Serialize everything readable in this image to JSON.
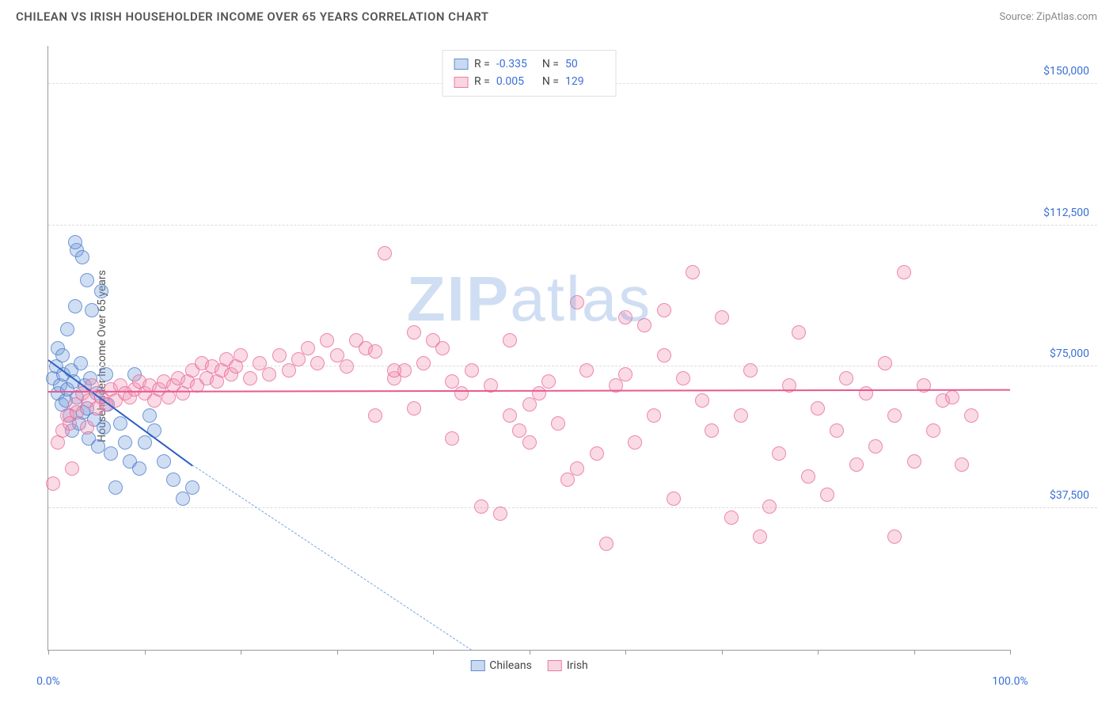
{
  "header": {
    "title": "CHILEAN VS IRISH HOUSEHOLDER INCOME OVER 65 YEARS CORRELATION CHART",
    "source": "Source: ZipAtlas.com"
  },
  "ylabel": "Householder Income Over 65 years",
  "watermark": {
    "a": "ZIP",
    "b": "atlas"
  },
  "chart": {
    "type": "scatter",
    "xlim": [
      0,
      100
    ],
    "ylim": [
      0,
      160000
    ],
    "x_ticks": [
      0,
      10,
      20,
      30,
      40,
      50,
      60,
      70,
      80,
      90,
      100
    ],
    "x_tick_labels": {
      "0": "0.0%",
      "100": "100.0%"
    },
    "y_ticks": [
      37500,
      75000,
      112500,
      150000
    ],
    "y_tick_labels": [
      "$37,500",
      "$75,000",
      "$112,500",
      "$150,000"
    ],
    "background_color": "#ffffff",
    "grid_color": "#dddddd",
    "series": [
      {
        "key": "a",
        "label": "Chileans",
        "color_fill": "rgba(120,160,220,0.35)",
        "color_stroke": "rgba(70,120,200,0.7)",
        "marker_size": 18,
        "R": "-0.335",
        "N": "50",
        "trend": {
          "x1": 0,
          "y1": 77000,
          "x2": 15,
          "y2": 49000,
          "dash_to_x": 44,
          "dash_to_y": 0
        },
        "points": [
          [
            0.5,
            72000
          ],
          [
            0.8,
            75000
          ],
          [
            1.0,
            68000
          ],
          [
            1.0,
            80000
          ],
          [
            1.2,
            70000
          ],
          [
            1.4,
            65000
          ],
          [
            1.5,
            78000
          ],
          [
            1.6,
            73000
          ],
          [
            1.8,
            66000
          ],
          [
            2.0,
            69000
          ],
          [
            2.0,
            85000
          ],
          [
            2.2,
            62000
          ],
          [
            2.4,
            74000
          ],
          [
            2.5,
            58000
          ],
          [
            2.6,
            71000
          ],
          [
            2.8,
            91000
          ],
          [
            3.0,
            106000
          ],
          [
            3.0,
            67000
          ],
          [
            3.2,
            60000
          ],
          [
            3.4,
            76000
          ],
          [
            3.5,
            104000
          ],
          [
            3.6,
            63000
          ],
          [
            3.8,
            70000
          ],
          [
            4.0,
            98000
          ],
          [
            4.0,
            64000
          ],
          [
            4.2,
            56000
          ],
          [
            4.4,
            72000
          ],
          [
            4.5,
            90000
          ],
          [
            4.8,
            61000
          ],
          [
            5.0,
            68000
          ],
          [
            5.2,
            54000
          ],
          [
            5.5,
            95000
          ],
          [
            5.8,
            59000
          ],
          [
            6.0,
            73000
          ],
          [
            6.2,
            65000
          ],
          [
            6.5,
            52000
          ],
          [
            7.0,
            43000
          ],
          [
            7.5,
            60000
          ],
          [
            8.0,
            55000
          ],
          [
            8.5,
            50000
          ],
          [
            9.0,
            73000
          ],
          [
            9.5,
            48000
          ],
          [
            10.0,
            55000
          ],
          [
            10.5,
            62000
          ],
          [
            11.0,
            58000
          ],
          [
            12.0,
            50000
          ],
          [
            13.0,
            45000
          ],
          [
            14.0,
            40000
          ],
          [
            15.0,
            43000
          ],
          [
            2.8,
            108000
          ]
        ]
      },
      {
        "key": "b",
        "label": "Irish",
        "color_fill": "rgba(240,150,180,0.35)",
        "color_stroke": "rgba(230,100,150,0.7)",
        "marker_size": 18,
        "R": "0.005",
        "N": "129",
        "trend": {
          "x1": 0,
          "y1": 68500,
          "x2": 100,
          "y2": 69000
        },
        "points": [
          [
            0.5,
            44000
          ],
          [
            1.0,
            55000
          ],
          [
            1.5,
            58000
          ],
          [
            2.0,
            62000
          ],
          [
            2.2,
            60000
          ],
          [
            2.5,
            48000
          ],
          [
            2.8,
            65000
          ],
          [
            3.0,
            63000
          ],
          [
            3.5,
            68000
          ],
          [
            4.0,
            59000
          ],
          [
            4.2,
            66000
          ],
          [
            4.5,
            70000
          ],
          [
            5.0,
            64000
          ],
          [
            5.5,
            67000
          ],
          [
            6.0,
            65000
          ],
          [
            6.5,
            69000
          ],
          [
            7.0,
            66000
          ],
          [
            7.5,
            70000
          ],
          [
            8.0,
            68000
          ],
          [
            8.5,
            67000
          ],
          [
            9.0,
            69000
          ],
          [
            9.5,
            71000
          ],
          [
            10.0,
            68000
          ],
          [
            10.5,
            70000
          ],
          [
            11.0,
            66000
          ],
          [
            11.5,
            69000
          ],
          [
            12.0,
            71000
          ],
          [
            12.5,
            67000
          ],
          [
            13.0,
            70000
          ],
          [
            13.5,
            72000
          ],
          [
            14.0,
            68000
          ],
          [
            14.5,
            71000
          ],
          [
            15.0,
            74000
          ],
          [
            15.5,
            70000
          ],
          [
            16.0,
            76000
          ],
          [
            16.5,
            72000
          ],
          [
            17.0,
            75000
          ],
          [
            17.5,
            71000
          ],
          [
            18.0,
            74000
          ],
          [
            18.5,
            77000
          ],
          [
            19.0,
            73000
          ],
          [
            19.5,
            75000
          ],
          [
            20.0,
            78000
          ],
          [
            21.0,
            72000
          ],
          [
            22.0,
            76000
          ],
          [
            23.0,
            73000
          ],
          [
            24.0,
            78000
          ],
          [
            25.0,
            74000
          ],
          [
            26.0,
            77000
          ],
          [
            27.0,
            80000
          ],
          [
            28.0,
            76000
          ],
          [
            29.0,
            82000
          ],
          [
            30.0,
            78000
          ],
          [
            31.0,
            75000
          ],
          [
            32.0,
            82000
          ],
          [
            33.0,
            80000
          ],
          [
            34.0,
            79000
          ],
          [
            35.0,
            105000
          ],
          [
            36.0,
            72000
          ],
          [
            37.0,
            74000
          ],
          [
            38.0,
            84000
          ],
          [
            39.0,
            76000
          ],
          [
            40.0,
            82000
          ],
          [
            41.0,
            80000
          ],
          [
            42.0,
            71000
          ],
          [
            43.0,
            68000
          ],
          [
            44.0,
            74000
          ],
          [
            45.0,
            38000
          ],
          [
            46.0,
            70000
          ],
          [
            47.0,
            36000
          ],
          [
            48.0,
            62000
          ],
          [
            49.0,
            58000
          ],
          [
            50.0,
            65000
          ],
          [
            51.0,
            68000
          ],
          [
            52.0,
            71000
          ],
          [
            53.0,
            60000
          ],
          [
            54.0,
            45000
          ],
          [
            55.0,
            48000
          ],
          [
            56.0,
            74000
          ],
          [
            57.0,
            52000
          ],
          [
            58.0,
            28000
          ],
          [
            59.0,
            70000
          ],
          [
            60.0,
            88000
          ],
          [
            61.0,
            55000
          ],
          [
            62.0,
            86000
          ],
          [
            63.0,
            62000
          ],
          [
            64.0,
            78000
          ],
          [
            65.0,
            40000
          ],
          [
            66.0,
            72000
          ],
          [
            67.0,
            100000
          ],
          [
            68.0,
            66000
          ],
          [
            69.0,
            58000
          ],
          [
            70.0,
            88000
          ],
          [
            71.0,
            35000
          ],
          [
            72.0,
            62000
          ],
          [
            73.0,
            74000
          ],
          [
            74.0,
            30000
          ],
          [
            75.0,
            38000
          ],
          [
            76.0,
            52000
          ],
          [
            77.0,
            70000
          ],
          [
            78.0,
            84000
          ],
          [
            79.0,
            46000
          ],
          [
            80.0,
            64000
          ],
          [
            81.0,
            41000
          ],
          [
            82.0,
            58000
          ],
          [
            83.0,
            72000
          ],
          [
            84.0,
            49000
          ],
          [
            85.0,
            68000
          ],
          [
            86.0,
            54000
          ],
          [
            87.0,
            76000
          ],
          [
            88.0,
            62000
          ],
          [
            89.0,
            100000
          ],
          [
            90.0,
            50000
          ],
          [
            91.0,
            70000
          ],
          [
            92.0,
            58000
          ],
          [
            93.0,
            66000
          ],
          [
            94.0,
            67000
          ],
          [
            95.0,
            49000
          ],
          [
            96.0,
            62000
          ],
          [
            88.0,
            30000
          ],
          [
            64.0,
            90000
          ],
          [
            60.0,
            73000
          ],
          [
            55.0,
            92000
          ],
          [
            50.0,
            55000
          ],
          [
            48.0,
            82000
          ],
          [
            42.0,
            56000
          ],
          [
            38.0,
            64000
          ],
          [
            36.0,
            74000
          ],
          [
            34.0,
            62000
          ]
        ]
      }
    ]
  },
  "legend_top": {
    "R_label": "R =",
    "N_label": "N ="
  },
  "legend_bottom": {
    "a": "Chileans",
    "b": "Irish"
  }
}
